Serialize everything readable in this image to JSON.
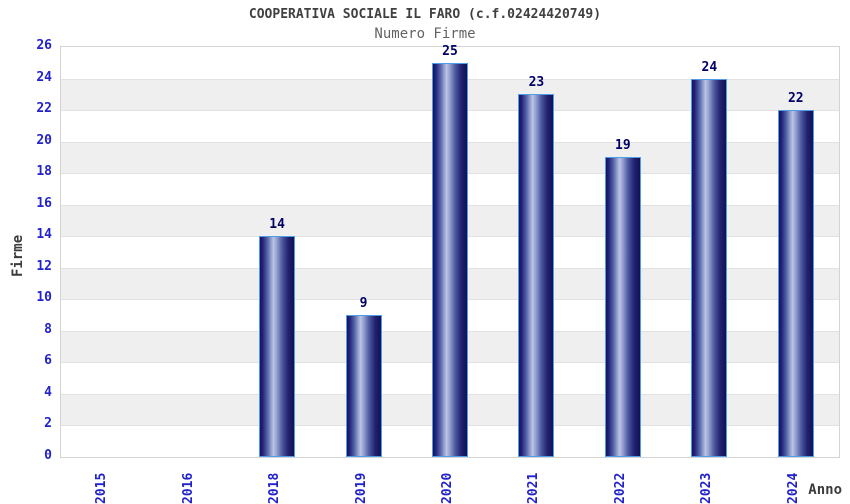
{
  "chart_data": {
    "type": "bar",
    "title": "COOPERATIVA SOCIALE IL FARO (c.f.02424420749)",
    "subtitle": "Numero Firme",
    "xlabel": "Anno",
    "ylabel": "Firme",
    "categories": [
      "2015",
      "2016",
      "2018",
      "2019",
      "2020",
      "2021",
      "2022",
      "2023",
      "2024"
    ],
    "values": [
      null,
      null,
      14,
      9,
      25,
      23,
      19,
      24,
      22
    ],
    "ylim": [
      0,
      26
    ],
    "ytick_step": 2,
    "legend": "none",
    "grid": "alternating-horizontal-bands",
    "band_color": "#efefef",
    "band_line_color": "#e2e2e2",
    "axis_border_color": "#d4d4d4",
    "tick_label_color": "#2222cc",
    "value_label_color": "#000066",
    "title_color": "#404040",
    "subtitle_color": "#636363",
    "bar_dark_color": "#16166a",
    "bar_highlight_color": "#bcc5e4",
    "bar_border_color": "#4f9de4"
  }
}
